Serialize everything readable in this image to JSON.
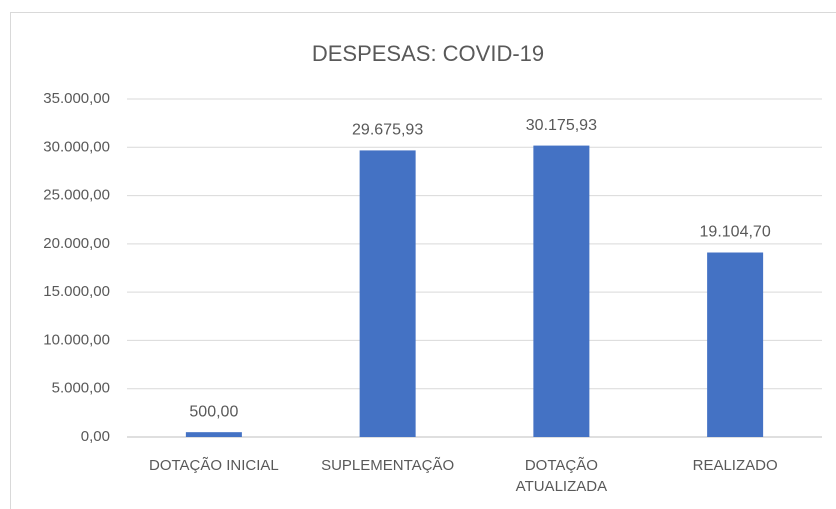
{
  "chart_data": {
    "type": "bar",
    "title": "DESPESAS: COVID-19",
    "categories": [
      "DOTAÇÃO INICIAL",
      "SUPLEMENTAÇÃO",
      "DOTAÇÃO ATUALIZADA",
      "REALIZADO"
    ],
    "values": [
      500,
      29675.93,
      30175.93,
      19104.7
    ],
    "value_labels": [
      "500,00",
      "29.675,93",
      "30.175,93",
      "19.104,70"
    ],
    "color": "#4472c4",
    "ylim": [
      0,
      35000
    ],
    "yticks": [
      {
        "value": 0,
        "label": "0,00"
      },
      {
        "value": 5000,
        "label": "5.000,00"
      },
      {
        "value": 10000,
        "label": "10.000,00"
      },
      {
        "value": 15000,
        "label": "15.000,00"
      },
      {
        "value": 20000,
        "label": "20.000,00"
      },
      {
        "value": 25000,
        "label": "25.000,00"
      },
      {
        "value": 30000,
        "label": "30.000,00"
      },
      {
        "value": 35000,
        "label": "35.000,00"
      }
    ],
    "grid": true
  }
}
